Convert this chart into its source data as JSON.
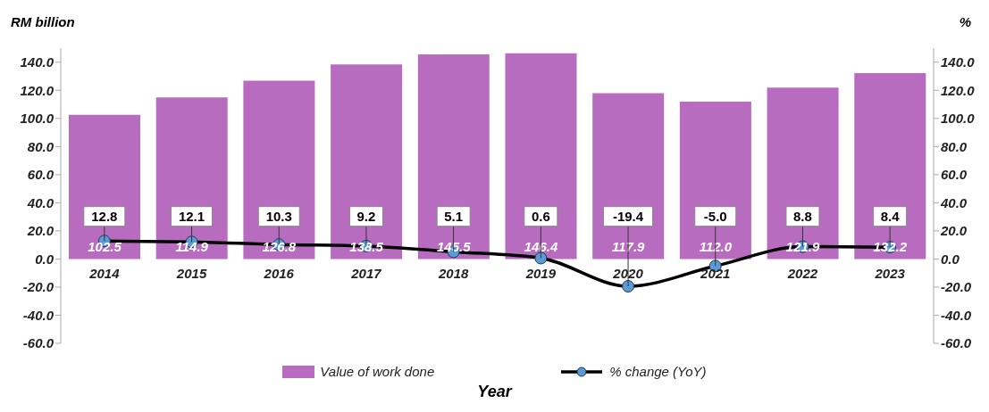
{
  "chart_data": {
    "type": "bar",
    "ylabel": "RM billion",
    "y2label": "%",
    "xlabel": "Year",
    "categories": [
      "2014",
      "2015",
      "2016",
      "2017",
      "2018",
      "2019",
      "2020",
      "2021",
      "2022",
      "2023"
    ],
    "series": [
      {
        "name": "Value of  work done",
        "color": "#b86cbf",
        "values": [
          102.5,
          114.9,
          126.8,
          138.5,
          145.5,
          146.4,
          117.9,
          112.0,
          121.9,
          132.2
        ],
        "value_labels": [
          "102.5",
          "114.9",
          "126.8",
          "138.5",
          "145.5",
          "146.4",
          "117.9",
          "112.0",
          "121.9",
          "132.2"
        ]
      },
      {
        "name": "% change (YoY)",
        "type": "line",
        "axis": "y2",
        "color": "#000000",
        "values": [
          12.8,
          12.1,
          10.3,
          9.2,
          5.1,
          0.6,
          -19.4,
          -5.0,
          8.8,
          8.4
        ],
        "value_labels": [
          "12.8",
          "12.1",
          "10.3",
          "9.2",
          "5.1",
          "0.6",
          "-19.4",
          "-5.0",
          "8.8",
          "8.4"
        ]
      }
    ],
    "ylim": [
      -60,
      150
    ],
    "yticks": [
      {
        "value": -60,
        "label": "-60.0"
      },
      {
        "value": -40,
        "label": "-40.0"
      },
      {
        "value": -20,
        "label": "-20.0"
      },
      {
        "value": 0,
        "label": "0.0"
      },
      {
        "value": 20,
        "label": "20.0"
      },
      {
        "value": 40,
        "label": "40.0"
      },
      {
        "value": 60,
        "label": "60.0"
      },
      {
        "value": 80,
        "label": "80.0"
      },
      {
        "value": 100,
        "label": "100.0"
      },
      {
        "value": 120,
        "label": "120.0"
      },
      {
        "value": 140,
        "label": "140.0"
      }
    ],
    "y2lim": [
      -60,
      150
    ],
    "y2ticks": [
      {
        "value": -60,
        "label": "-60.0"
      },
      {
        "value": -40,
        "label": "-40.0"
      },
      {
        "value": -20,
        "label": "-20.0"
      },
      {
        "value": 0,
        "label": "0.0"
      },
      {
        "value": 20,
        "label": "20.0"
      },
      {
        "value": 40,
        "label": "40.0"
      },
      {
        "value": 60,
        "label": "60.0"
      },
      {
        "value": 80,
        "label": "80.0"
      },
      {
        "value": 100,
        "label": "100.0"
      },
      {
        "value": 120,
        "label": "120.0"
      },
      {
        "value": 140,
        "label": "140.0"
      }
    ],
    "marker": "circle",
    "line_style": "solid",
    "grid": false,
    "legend": "bottom"
  }
}
